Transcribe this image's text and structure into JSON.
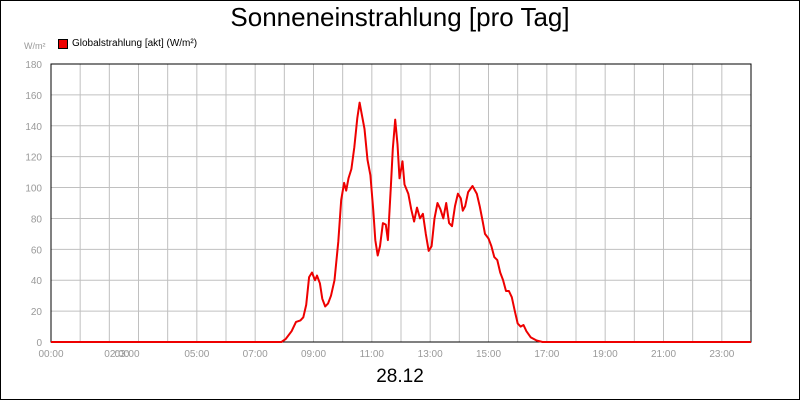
{
  "chart_data": {
    "type": "line",
    "title": "Sonneneinstrahlung [pro Tag]",
    "unit": "W/m²",
    "date": "28.12",
    "ylim": [
      0,
      180
    ],
    "y_ticks": [
      0,
      20,
      40,
      60,
      80,
      100,
      120,
      140,
      160,
      180
    ],
    "xlim": [
      0,
      24
    ],
    "x_ticks": [
      {
        "value": 0,
        "label": "00:00"
      },
      {
        "value": 2,
        "label": "02:00"
      },
      {
        "value": 3,
        "label": "03:00"
      },
      {
        "value": 5,
        "label": "05:00"
      },
      {
        "value": 7,
        "label": "07:00"
      },
      {
        "value": 9,
        "label": "09:00"
      },
      {
        "value": 11,
        "label": "11:00"
      },
      {
        "value": 13,
        "label": "13:00"
      },
      {
        "value": 15,
        "label": "15:00"
      },
      {
        "value": 17,
        "label": "17:00"
      },
      {
        "value": 19,
        "label": "19:00"
      },
      {
        "value": 21,
        "label": "21:00"
      },
      {
        "value": 23,
        "label": "23:00"
      }
    ],
    "grid": true,
    "legend_position": "top-left",
    "series": [
      {
        "name": "Globalstrahlung [akt] (W/m²)",
        "color": "#ee0000",
        "points": [
          [
            0,
            0
          ],
          [
            7.9,
            0
          ],
          [
            8.05,
            2
          ],
          [
            8.25,
            7
          ],
          [
            8.4,
            13
          ],
          [
            8.55,
            14
          ],
          [
            8.65,
            16
          ],
          [
            8.75,
            24
          ],
          [
            8.85,
            42
          ],
          [
            8.95,
            45
          ],
          [
            9.05,
            40
          ],
          [
            9.12,
            43
          ],
          [
            9.22,
            38
          ],
          [
            9.3,
            28
          ],
          [
            9.4,
            23
          ],
          [
            9.5,
            25
          ],
          [
            9.6,
            30
          ],
          [
            9.72,
            40
          ],
          [
            9.85,
            65
          ],
          [
            9.95,
            92
          ],
          [
            10.05,
            103
          ],
          [
            10.12,
            98
          ],
          [
            10.2,
            106
          ],
          [
            10.3,
            112
          ],
          [
            10.4,
            126
          ],
          [
            10.5,
            145
          ],
          [
            10.58,
            155
          ],
          [
            10.65,
            148
          ],
          [
            10.75,
            138
          ],
          [
            10.85,
            118
          ],
          [
            10.95,
            108
          ],
          [
            11.05,
            85
          ],
          [
            11.12,
            66
          ],
          [
            11.2,
            56
          ],
          [
            11.28,
            62
          ],
          [
            11.38,
            77
          ],
          [
            11.48,
            76
          ],
          [
            11.55,
            66
          ],
          [
            11.65,
            100
          ],
          [
            11.72,
            125
          ],
          [
            11.8,
            144
          ],
          [
            11.88,
            128
          ],
          [
            11.95,
            106
          ],
          [
            12.05,
            117
          ],
          [
            12.12,
            102
          ],
          [
            12.25,
            96
          ],
          [
            12.35,
            86
          ],
          [
            12.45,
            78
          ],
          [
            12.55,
            87
          ],
          [
            12.65,
            80
          ],
          [
            12.75,
            83
          ],
          [
            12.85,
            70
          ],
          [
            12.95,
            59
          ],
          [
            13.05,
            62
          ],
          [
            13.15,
            80
          ],
          [
            13.25,
            90
          ],
          [
            13.35,
            86
          ],
          [
            13.45,
            80
          ],
          [
            13.55,
            90
          ],
          [
            13.65,
            77
          ],
          [
            13.75,
            75
          ],
          [
            13.85,
            88
          ],
          [
            13.95,
            96
          ],
          [
            14.05,
            93
          ],
          [
            14.12,
            85
          ],
          [
            14.2,
            88
          ],
          [
            14.3,
            97
          ],
          [
            14.45,
            101
          ],
          [
            14.6,
            96
          ],
          [
            14.7,
            88
          ],
          [
            14.8,
            78
          ],
          [
            14.88,
            70
          ],
          [
            15.0,
            67
          ],
          [
            15.1,
            62
          ],
          [
            15.2,
            55
          ],
          [
            15.3,
            53
          ],
          [
            15.4,
            45
          ],
          [
            15.5,
            40
          ],
          [
            15.6,
            33
          ],
          [
            15.7,
            33
          ],
          [
            15.8,
            29
          ],
          [
            15.9,
            20
          ],
          [
            16.0,
            12
          ],
          [
            16.1,
            10
          ],
          [
            16.2,
            11
          ],
          [
            16.3,
            7
          ],
          [
            16.45,
            3
          ],
          [
            16.65,
            1
          ],
          [
            16.85,
            0
          ],
          [
            24,
            0
          ]
        ]
      }
    ]
  }
}
